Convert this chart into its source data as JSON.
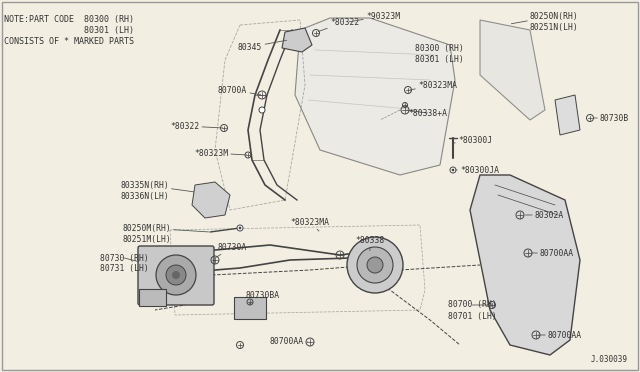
{
  "bg_color": "#f2efe2",
  "line_color": "#444444",
  "text_color": "#333333",
  "diagram_id": "J.030039",
  "note_lines": [
    "NOTE:PART CODE  80300 (RH)",
    "                80301 (LH)",
    "CONSISTS OF * MARKED PARTS"
  ],
  "fig_w": 6.4,
  "fig_h": 3.72,
  "dpi": 100,
  "label_fs": 5.8,
  "note_fs": 6.0
}
